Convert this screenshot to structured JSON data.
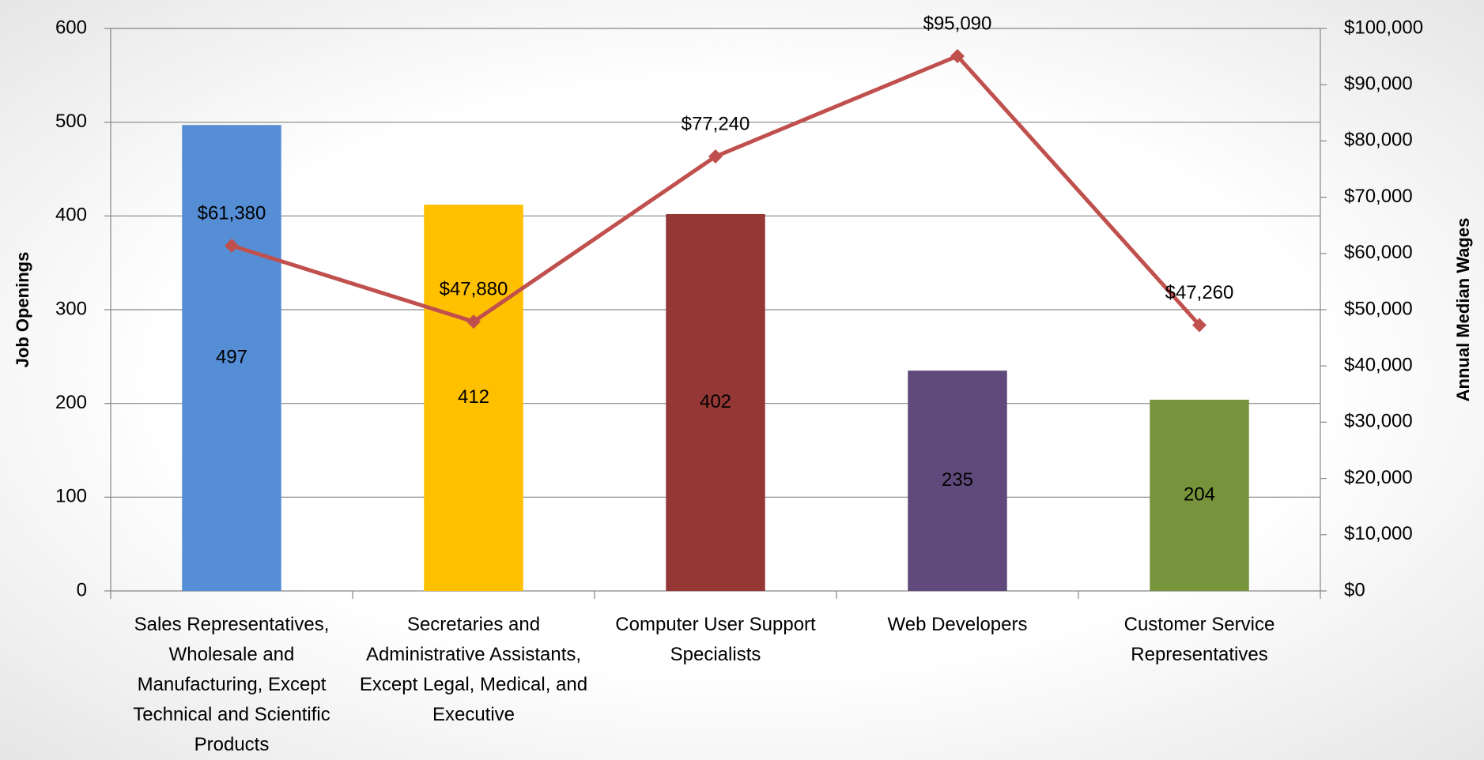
{
  "chart_data": {
    "type": "bar",
    "categories": [
      "Sales Representatives, Wholesale and Manufacturing, Except Technical and Scientific Products",
      "Secretaries and Administrative Assistants, Except Legal, Medical, and Executive",
      "Computer User Support Specialists",
      "Web Developers",
      "Customer Service Representatives"
    ],
    "series": [
      {
        "type": "bar",
        "colors": [
          "#558ed5",
          "#ffc000",
          "#953735",
          "#604a7b",
          "#77933c"
        ],
        "values": [
          497,
          412,
          402,
          235,
          204
        ]
      },
      {
        "type": "line",
        "axis": "y2",
        "color": "#c0504d",
        "values": [
          61380,
          47880,
          77240,
          95090,
          47260
        ],
        "value_labels": [
          "$61,380",
          "$47,880",
          "$77,240",
          "$95,090",
          "$47,260"
        ]
      }
    ],
    "ylabel": "Job Openings",
    "y2label": "Annual Median Wages",
    "ylim": [
      0,
      600
    ],
    "yticks": [
      0,
      100,
      200,
      300,
      400,
      500,
      600
    ],
    "y2lim": [
      0,
      100000
    ],
    "y2ticks": [
      {
        "value": 0,
        "label": "$0"
      },
      {
        "value": 10000,
        "label": "$10,000"
      },
      {
        "value": 20000,
        "label": "$20,000"
      },
      {
        "value": 30000,
        "label": "$30,000"
      },
      {
        "value": 40000,
        "label": "$40,000"
      },
      {
        "value": 50000,
        "label": "$50,000"
      },
      {
        "value": 60000,
        "label": "$60,000"
      },
      {
        "value": 70000,
        "label": "$70,000"
      },
      {
        "value": 80000,
        "label": "$80,000"
      },
      {
        "value": 90000,
        "label": "$90,000"
      },
      {
        "value": 100000,
        "label": "$100,000"
      }
    ],
    "grid": true
  }
}
